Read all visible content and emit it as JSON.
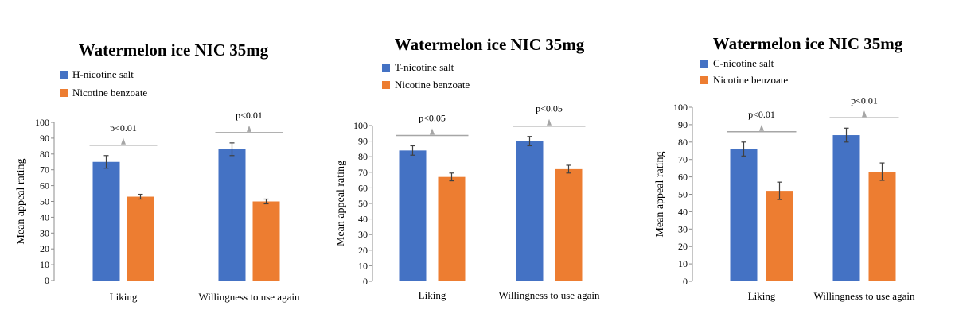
{
  "colors": {
    "series_1": "#4472C4",
    "series_2": "#ED7D31",
    "axis": "#8c8c8c",
    "sig": "#a6a6a6",
    "error": "#404040"
  },
  "chart_data": [
    {
      "type": "bar",
      "title": "Watermelon ice NIC 35mg",
      "ylabel": "Mean appeal rating",
      "xlabel": "",
      "ylim": [
        0,
        100
      ],
      "yticks": [
        0,
        10,
        20,
        30,
        40,
        50,
        60,
        70,
        80,
        90,
        100
      ],
      "categories": [
        "Liking",
        "Willingness to use again"
      ],
      "series": [
        {
          "name": "H-nicotine salt",
          "values": [
            75,
            83
          ],
          "errors": [
            4,
            4
          ]
        },
        {
          "name": "Nicotine benzoate",
          "values": [
            53,
            50
          ],
          "errors": [
            1.5,
            1.5
          ]
        }
      ],
      "significance": [
        "p<0.01",
        "p<0.01"
      ],
      "legend_position": "top-left"
    },
    {
      "type": "bar",
      "title": "Watermelon ice NIC 35mg",
      "ylabel": "Mean appeal rating",
      "xlabel": "",
      "ylim": [
        0,
        100
      ],
      "yticks": [
        0,
        10,
        20,
        30,
        40,
        50,
        60,
        70,
        80,
        90,
        100
      ],
      "categories": [
        "Liking",
        "Willingness to use again"
      ],
      "series": [
        {
          "name": "T-nicotine salt",
          "values": [
            84,
            90
          ],
          "errors": [
            3,
            3
          ]
        },
        {
          "name": "Nicotine benzoate",
          "values": [
            67,
            72
          ],
          "errors": [
            2.5,
            2.5
          ]
        }
      ],
      "significance": [
        "p<0.05",
        "p<0.05"
      ],
      "legend_position": "top-left"
    },
    {
      "type": "bar",
      "title": "Watermelon ice NIC 35mg",
      "ylabel": "Mean appeal rating",
      "xlabel": "",
      "ylim": [
        0,
        100
      ],
      "yticks": [
        0,
        10,
        20,
        30,
        40,
        50,
        60,
        70,
        80,
        90,
        100
      ],
      "categories": [
        "Liking",
        "Willingness to use again"
      ],
      "series": [
        {
          "name": "C-nicotine salt",
          "values": [
            76,
            84
          ],
          "errors": [
            4,
            4
          ]
        },
        {
          "name": "Nicotine benzoate",
          "values": [
            52,
            63
          ],
          "errors": [
            5,
            5
          ]
        }
      ],
      "significance": [
        "p<0.01",
        "p<0.01"
      ],
      "legend_position": "top-left"
    }
  ]
}
